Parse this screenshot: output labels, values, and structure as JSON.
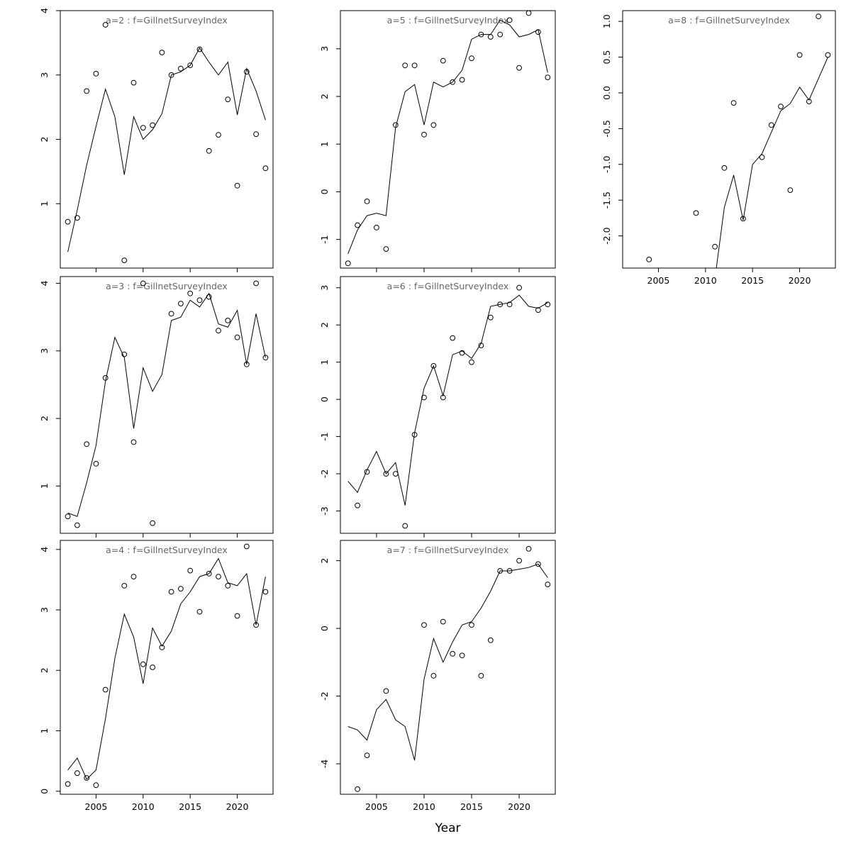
{
  "figure": {
    "xlabel": "Year",
    "background": "#ffffff",
    "line_color": "#000000",
    "point_color": "#000000",
    "title_color": "#666666"
  },
  "chart_data": {
    "type": "line",
    "xlim": [
      2001.2,
      2023.8
    ],
    "x_ticks": [
      2005,
      2010,
      2015,
      2020
    ],
    "x_tick_labels": [
      "2005",
      "2010",
      "2015",
      "2020"
    ],
    "legend": "none",
    "grid": false,
    "panels": [
      {
        "id": "a2",
        "title": "a=2  :  f=GillnetSurveyIndex",
        "ylim": [
          0,
          4.0
        ],
        "yticks": [
          1,
          2,
          3,
          4
        ],
        "ytick_labels": [
          "1",
          "2",
          "3",
          "4"
        ],
        "show_x_labels": false,
        "points": {
          "x": [
            2002,
            2003,
            2004,
            2005,
            2006,
            2008,
            2009,
            2010,
            2011,
            2012,
            2013,
            2014,
            2015,
            2016,
            2017,
            2018,
            2019,
            2020,
            2021,
            2022,
            2023
          ],
          "y": [
            0.72,
            0.78,
            2.75,
            3.02,
            3.78,
            0.12,
            2.88,
            2.18,
            2.22,
            3.35,
            3.0,
            3.1,
            3.15,
            3.4,
            1.82,
            2.07,
            2.62,
            1.28,
            3.05,
            2.08,
            1.55
          ]
        },
        "line": {
          "x": [
            2002,
            2003,
            2004,
            2005,
            2006,
            2007,
            2008,
            2009,
            2010,
            2011,
            2012,
            2013,
            2014,
            2015,
            2016,
            2017,
            2018,
            2019,
            2020,
            2021,
            2022,
            2023
          ],
          "y": [
            0.25,
            0.9,
            1.6,
            2.2,
            2.78,
            2.35,
            1.45,
            2.35,
            2.0,
            2.15,
            2.4,
            3.0,
            3.05,
            3.15,
            3.42,
            3.2,
            3.0,
            3.2,
            2.38,
            3.1,
            2.75,
            2.3
          ]
        }
      },
      {
        "id": "a3",
        "title": "a=3  :  f=GillnetSurveyIndex",
        "ylim": [
          0.3,
          4.1
        ],
        "yticks": [
          1,
          2,
          3,
          4
        ],
        "ytick_labels": [
          "1",
          "2",
          "3",
          "4"
        ],
        "show_x_labels": false,
        "points": {
          "x": [
            2002,
            2003,
            2004,
            2005,
            2006,
            2008,
            2009,
            2010,
            2011,
            2013,
            2014,
            2015,
            2016,
            2017,
            2018,
            2019,
            2020,
            2021,
            2022,
            2023
          ],
          "y": [
            0.55,
            0.42,
            1.62,
            1.33,
            2.6,
            2.95,
            1.65,
            4.0,
            0.45,
            3.55,
            3.7,
            3.85,
            3.75,
            3.8,
            3.3,
            3.45,
            3.2,
            2.8,
            4.0,
            2.9
          ]
        },
        "line": {
          "x": [
            2002,
            2003,
            2004,
            2005,
            2006,
            2007,
            2008,
            2009,
            2010,
            2011,
            2012,
            2013,
            2014,
            2015,
            2016,
            2017,
            2018,
            2019,
            2020,
            2021,
            2022,
            2023
          ],
          "y": [
            0.6,
            0.55,
            1.05,
            1.6,
            2.55,
            3.2,
            2.9,
            1.85,
            2.75,
            2.4,
            2.65,
            3.45,
            3.5,
            3.75,
            3.65,
            3.85,
            3.4,
            3.35,
            3.6,
            2.8,
            3.55,
            2.9
          ]
        }
      },
      {
        "id": "a4",
        "title": "a=4  :  f=GillnetSurveyIndex",
        "ylim": [
          -0.05,
          4.15
        ],
        "yticks": [
          0,
          1,
          2,
          3,
          4
        ],
        "ytick_labels": [
          "0",
          "1",
          "2",
          "3",
          "4"
        ],
        "show_x_labels": true,
        "points": {
          "x": [
            2002,
            2003,
            2004,
            2005,
            2006,
            2008,
            2009,
            2010,
            2011,
            2012,
            2013,
            2014,
            2015,
            2016,
            2017,
            2018,
            2019,
            2020,
            2021,
            2022,
            2023
          ],
          "y": [
            0.12,
            0.3,
            0.22,
            0.1,
            1.68,
            3.4,
            3.55,
            2.1,
            2.05,
            2.38,
            3.3,
            3.35,
            3.65,
            2.97,
            3.6,
            3.55,
            3.4,
            2.9,
            4.05,
            2.75,
            3.3
          ]
        },
        "line": {
          "x": [
            2002,
            2003,
            2004,
            2005,
            2006,
            2007,
            2008,
            2009,
            2010,
            2011,
            2012,
            2013,
            2014,
            2015,
            2016,
            2017,
            2018,
            2019,
            2020,
            2021,
            2022,
            2023
          ],
          "y": [
            0.35,
            0.55,
            0.2,
            0.35,
            1.2,
            2.2,
            2.93,
            2.55,
            1.78,
            2.7,
            2.4,
            2.65,
            3.1,
            3.3,
            3.55,
            3.6,
            3.85,
            3.45,
            3.4,
            3.6,
            2.75,
            3.55
          ]
        }
      },
      {
        "id": "a5",
        "title": "a=5  :  f=GillnetSurveyIndex",
        "ylim": [
          -1.6,
          3.8
        ],
        "yticks": [
          -1,
          0,
          1,
          2,
          3
        ],
        "ytick_labels": [
          "-1",
          "0",
          "1",
          "2",
          "3"
        ],
        "show_x_labels": false,
        "points": {
          "x": [
            2002,
            2003,
            2004,
            2005,
            2006,
            2007,
            2008,
            2009,
            2010,
            2011,
            2012,
            2013,
            2014,
            2015,
            2016,
            2017,
            2018,
            2019,
            2020,
            2021,
            2022,
            2023
          ],
          "y": [
            -1.5,
            -0.7,
            -0.2,
            -0.75,
            -1.2,
            1.4,
            2.65,
            2.65,
            1.2,
            1.4,
            2.75,
            2.3,
            2.35,
            2.8,
            3.3,
            3.25,
            3.3,
            3.6,
            2.6,
            3.75,
            3.35,
            2.4
          ]
        },
        "line": {
          "x": [
            2002,
            2003,
            2004,
            2005,
            2006,
            2007,
            2008,
            2009,
            2010,
            2011,
            2012,
            2013,
            2014,
            2015,
            2016,
            2017,
            2018,
            2019,
            2020,
            2021,
            2022,
            2023
          ],
          "y": [
            -1.3,
            -0.8,
            -0.5,
            -0.45,
            -0.5,
            1.35,
            2.1,
            2.25,
            1.4,
            2.3,
            2.2,
            2.3,
            2.55,
            3.2,
            3.3,
            3.3,
            3.6,
            3.5,
            3.25,
            3.3,
            3.4,
            2.5
          ]
        }
      },
      {
        "id": "a6",
        "title": "a=6  :  f=GillnetSurveyIndex",
        "ylim": [
          -3.6,
          3.3
        ],
        "yticks": [
          -3,
          -2,
          -1,
          0,
          1,
          2,
          3
        ],
        "ytick_labels": [
          "-3",
          "-2",
          "-1",
          "0",
          "1",
          "2",
          "3"
        ],
        "show_x_labels": false,
        "points": {
          "x": [
            2003,
            2004,
            2006,
            2007,
            2008,
            2009,
            2010,
            2011,
            2012,
            2013,
            2014,
            2015,
            2016,
            2017,
            2018,
            2019,
            2020,
            2022,
            2023
          ],
          "y": [
            -2.85,
            -1.95,
            -2.0,
            -2.0,
            -3.4,
            -0.95,
            0.05,
            0.9,
            0.05,
            1.65,
            1.25,
            1.0,
            1.45,
            2.2,
            2.55,
            2.55,
            3.0,
            2.4,
            2.55
          ]
        },
        "line": {
          "x": [
            2002,
            2003,
            2004,
            2005,
            2006,
            2007,
            2008,
            2009,
            2010,
            2011,
            2012,
            2013,
            2014,
            2015,
            2016,
            2017,
            2018,
            2019,
            2020,
            2021,
            2022,
            2023
          ],
          "y": [
            -2.2,
            -2.5,
            -1.9,
            -1.4,
            -2.0,
            -1.7,
            -2.85,
            -0.9,
            0.3,
            0.9,
            0.1,
            1.2,
            1.3,
            1.1,
            1.5,
            2.5,
            2.55,
            2.6,
            2.8,
            2.5,
            2.45,
            2.6
          ]
        }
      },
      {
        "id": "a7",
        "title": "a=7  :  f=GillnetSurveyIndex",
        "ylim": [
          -4.9,
          2.6
        ],
        "yticks": [
          -4,
          -2,
          0,
          2
        ],
        "ytick_labels": [
          "-4",
          "-2",
          "0",
          "2"
        ],
        "show_x_labels": true,
        "points": {
          "x": [
            2003,
            2004,
            2006,
            2010,
            2011,
            2012,
            2013,
            2014,
            2015,
            2016,
            2017,
            2018,
            2019,
            2020,
            2021,
            2022,
            2023
          ],
          "y": [
            -4.75,
            -3.75,
            -1.85,
            0.1,
            -1.4,
            0.2,
            -0.75,
            -0.8,
            0.1,
            -1.4,
            -0.35,
            1.7,
            1.7,
            2.0,
            2.35,
            1.9,
            1.3
          ]
        },
        "line": {
          "x": [
            2002,
            2003,
            2004,
            2005,
            2006,
            2007,
            2008,
            2009,
            2010,
            2011,
            2012,
            2013,
            2014,
            2015,
            2016,
            2017,
            2018,
            2019,
            2020,
            2021,
            2022,
            2023
          ],
          "y": [
            -2.9,
            -3.0,
            -3.3,
            -2.4,
            -2.1,
            -2.7,
            -2.9,
            -3.9,
            -1.5,
            -0.3,
            -1.0,
            -0.4,
            0.1,
            0.2,
            0.6,
            1.1,
            1.7,
            1.7,
            1.75,
            1.8,
            1.9,
            1.5
          ]
        }
      },
      {
        "id": "a8",
        "title": "a=8  :  f=GillnetSurveyIndex",
        "ylim": [
          -2.45,
          1.15
        ],
        "yticks": [
          -2.0,
          -1.5,
          -1.0,
          -0.5,
          0.0,
          0.5,
          1.0
        ],
        "ytick_labels": [
          "-2.0",
          "-1.5",
          "-1.0",
          "-0.5",
          "0.0",
          "0.5",
          "1.0"
        ],
        "show_x_labels": true,
        "points": {
          "x": [
            2004,
            2009,
            2011,
            2012,
            2013,
            2014,
            2016,
            2017,
            2018,
            2019,
            2020,
            2021,
            2022,
            2023
          ],
          "y": [
            -2.33,
            -1.68,
            -2.15,
            -1.05,
            -0.14,
            -1.76,
            -0.9,
            -0.45,
            -0.19,
            -1.36,
            0.53,
            -0.12,
            1.07,
            0.53
          ]
        },
        "line": {
          "x": [
            2011,
            2012,
            2013,
            2014,
            2015,
            2016,
            2017,
            2018,
            2019,
            2020,
            2021,
            2022,
            2023
          ],
          "y": [
            -2.6,
            -1.6,
            -1.15,
            -1.78,
            -1.0,
            -0.85,
            -0.55,
            -0.25,
            -0.15,
            0.08,
            -0.1,
            0.2,
            0.5
          ]
        }
      }
    ]
  }
}
